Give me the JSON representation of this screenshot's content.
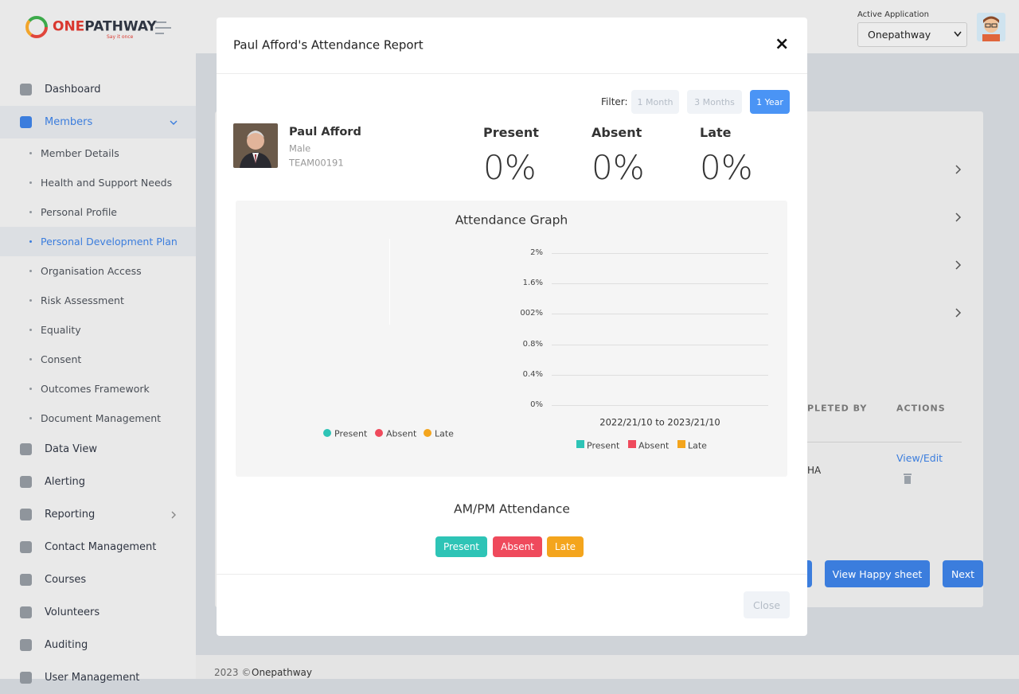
{
  "sidebar": {
    "brand": {
      "first": "ONE",
      "second": "PATHWAY",
      "tagline": "Say it once"
    },
    "menu": [
      {
        "label": "Dashboard"
      },
      {
        "label": "Members",
        "children": [
          "Member Details",
          "Health and Support Needs",
          "Personal Profile",
          "Personal Development Plan",
          "Organisation Access",
          "Risk Assessment",
          "Equality",
          "Consent",
          "Outcomes Framework",
          "Document Management"
        ]
      },
      {
        "label": "Data View"
      },
      {
        "label": "Alerting"
      },
      {
        "label": "Reporting"
      },
      {
        "label": "Contact Management"
      },
      {
        "label": "Courses"
      },
      {
        "label": "Volunteers"
      },
      {
        "label": "Auditing"
      },
      {
        "label": "User Management"
      }
    ]
  },
  "header": {
    "app_label": "Active Application",
    "app_selected": "Onepathway"
  },
  "background": {
    "table_headers": [
      "PLETED BY",
      "ACTIONS"
    ],
    "row": {
      "completed_by": "HA",
      "action": "View/Edit"
    },
    "buttons": [
      "View Happy sheet",
      "Next"
    ]
  },
  "footer": {
    "copyright": "2023 ©",
    "brand": "Onepathway"
  },
  "modal": {
    "title": "Paul Afford's Attendance Report",
    "close_icon": "×",
    "filter": {
      "label": "Filter:",
      "options": [
        "1 Month",
        "3 Months",
        "1 Year"
      ]
    },
    "profile": {
      "name": "Paul Afford",
      "gender": "Male",
      "id": "TEAM00191"
    },
    "stats": [
      {
        "label": "Present",
        "value": "0%"
      },
      {
        "label": "Absent",
        "value": "0%"
      },
      {
        "label": "Late",
        "value": "0%"
      }
    ],
    "graph": {
      "title": "Attendance Graph",
      "pie_legend": [
        "Present",
        "Absent",
        "Late"
      ],
      "bar_ticks": [
        "2%",
        "1.6%",
        "0002%",
        "0.8%",
        "0.4%",
        "0%"
      ],
      "bar_x_label": "2022/21/10 to 2023/21/10",
      "bar_legend": [
        "Present",
        "Absent",
        "Late"
      ]
    },
    "ampm": {
      "title": "AM/PM Attendance",
      "badges": [
        "Present",
        "Absent",
        "Late"
      ]
    },
    "footer_button": "Close"
  }
}
